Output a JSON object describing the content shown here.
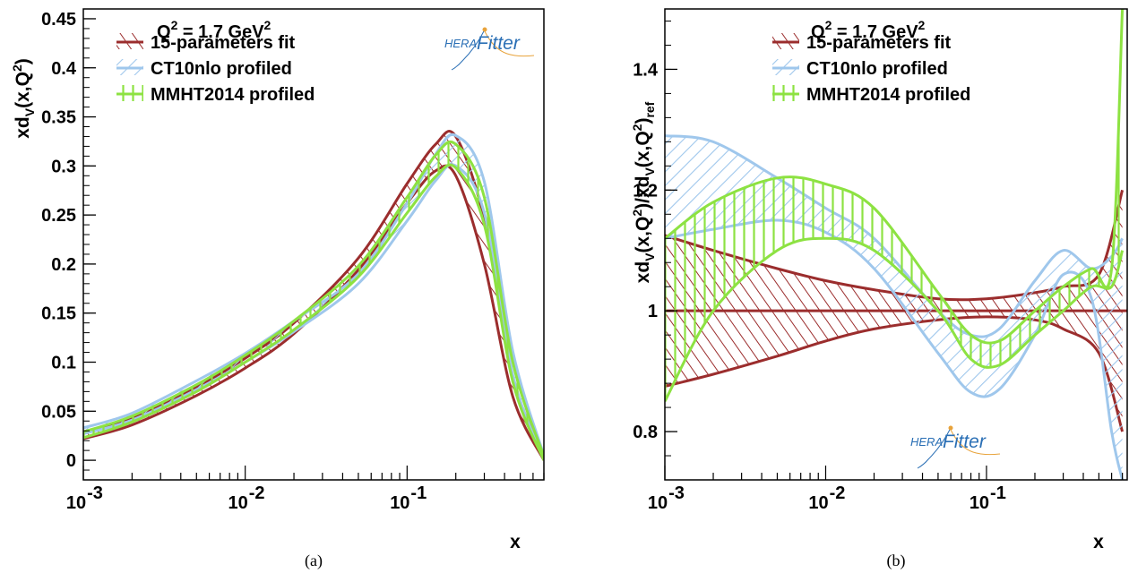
{
  "chart_data": [
    {
      "type": "line",
      "panel": "(a)",
      "annotation": "Q^2 = 1.7 GeV^2",
      "xlabel": "x",
      "ylabel": "xd_V(x,Q^2)",
      "xscale": "log",
      "xlim": [
        0.001,
        0.7
      ],
      "ylim": [
        -0.02,
        0.46
      ],
      "xticks": [
        {
          "value": 0.001,
          "label": "10",
          "exp": "-3"
        },
        {
          "value": 0.01,
          "label": "10",
          "exp": "-2"
        },
        {
          "value": 0.1,
          "label": "10",
          "exp": "-1"
        }
      ],
      "yticks": [
        {
          "value": 0,
          "label": "0"
        },
        {
          "value": 0.05,
          "label": "0.05"
        },
        {
          "value": 0.1,
          "label": "0.1"
        },
        {
          "value": 0.15,
          "label": "0.15"
        },
        {
          "value": 0.2,
          "label": "0.2"
        },
        {
          "value": 0.25,
          "label": "0.25"
        },
        {
          "value": 0.3,
          "label": "0.3"
        },
        {
          "value": 0.35,
          "label": "0.35"
        },
        {
          "value": 0.4,
          "label": "0.4"
        },
        {
          "value": 0.45,
          "label": "0.45"
        }
      ],
      "logo": {
        "a": "HERA",
        "b": "Fitter"
      },
      "series": [
        {
          "name": "15-parameters fit",
          "color": "#9b2d2d",
          "hatch": "diagonal",
          "x": [
            0.001,
            0.002,
            0.005,
            0.01,
            0.02,
            0.05,
            0.1,
            0.15,
            0.2,
            0.3,
            0.45,
            0.7
          ],
          "lower": [
            0.022,
            0.036,
            0.066,
            0.094,
            0.129,
            0.194,
            0.262,
            0.295,
            0.29,
            0.2,
            0.065,
            0.0
          ],
          "upper": [
            0.028,
            0.043,
            0.075,
            0.104,
            0.14,
            0.206,
            0.282,
            0.322,
            0.33,
            0.245,
            0.085,
            0.004
          ]
        },
        {
          "name": "CT10nlo profiled",
          "color": "#9fc7ec",
          "hatch": "backdiagonal",
          "x": [
            0.001,
            0.002,
            0.005,
            0.01,
            0.02,
            0.05,
            0.1,
            0.15,
            0.2,
            0.3,
            0.45,
            0.7
          ],
          "lower": [
            0.027,
            0.041,
            0.072,
            0.1,
            0.131,
            0.18,
            0.244,
            0.285,
            0.3,
            0.252,
            0.087,
            0.001
          ],
          "upper": [
            0.033,
            0.048,
            0.081,
            0.109,
            0.142,
            0.19,
            0.262,
            0.312,
            0.331,
            0.284,
            0.111,
            0.005
          ]
        },
        {
          "name": "MMHT2014 profiled",
          "color": "#8de242",
          "hatch": "vertical",
          "x": [
            0.001,
            0.002,
            0.005,
            0.01,
            0.02,
            0.05,
            0.1,
            0.15,
            0.2,
            0.3,
            0.45,
            0.7
          ],
          "lower": [
            0.023,
            0.039,
            0.07,
            0.1,
            0.133,
            0.187,
            0.252,
            0.289,
            0.298,
            0.24,
            0.08,
            0.0
          ],
          "upper": [
            0.029,
            0.045,
            0.077,
            0.107,
            0.142,
            0.198,
            0.268,
            0.311,
            0.322,
            0.268,
            0.1,
            0.004
          ]
        }
      ],
      "caption": "(a)"
    },
    {
      "type": "line",
      "panel": "(b)",
      "annotation": "Q^2 = 1.7 GeV^2",
      "xlabel": "x",
      "ylabel": "xd_V(x,Q^2)/xd_V(x,Q^2)_ref",
      "xscale": "log",
      "xlim": [
        0.001,
        0.75
      ],
      "ylim": [
        0.72,
        1.5
      ],
      "xticks": [
        {
          "value": 0.001,
          "label": "10",
          "exp": "-3"
        },
        {
          "value": 0.01,
          "label": "10",
          "exp": "-2"
        },
        {
          "value": 0.1,
          "label": "10",
          "exp": "-1"
        }
      ],
      "yticks": [
        {
          "value": 0.8,
          "label": "0.8"
        },
        {
          "value": 1.0,
          "label": "1"
        },
        {
          "value": 1.2,
          "label": "1.2"
        },
        {
          "value": 1.4,
          "label": "1.4"
        }
      ],
      "logo": {
        "a": "HERA",
        "b": "Fitter"
      },
      "series": [
        {
          "name": "15-parameters fit",
          "color": "#9b2d2d",
          "hatch": "diagonal",
          "x": [
            0.001,
            0.002,
            0.005,
            0.01,
            0.02,
            0.05,
            0.1,
            0.2,
            0.3,
            0.5,
            0.7
          ],
          "lower": [
            0.875,
            0.895,
            0.925,
            0.95,
            0.97,
            0.985,
            0.99,
            0.985,
            0.97,
            0.93,
            0.8
          ],
          "upper": [
            1.125,
            1.1,
            1.07,
            1.05,
            1.035,
            1.02,
            1.02,
            1.03,
            1.04,
            1.06,
            1.2
          ]
        },
        {
          "name": "CT10nlo profiled",
          "color": "#9fc7ec",
          "hatch": "backdiagonal",
          "x": [
            0.001,
            0.002,
            0.005,
            0.01,
            0.02,
            0.05,
            0.08,
            0.12,
            0.2,
            0.3,
            0.45,
            0.6,
            0.7
          ],
          "lower": [
            1.12,
            1.135,
            1.15,
            1.13,
            1.07,
            0.93,
            0.865,
            0.87,
            0.96,
            1.06,
            1.02,
            0.8,
            0.72
          ],
          "upper": [
            1.29,
            1.28,
            1.22,
            1.17,
            1.12,
            1.0,
            0.96,
            0.97,
            1.05,
            1.1,
            1.07,
            1.09,
            1.12
          ]
        },
        {
          "name": "MMHT2014 profiled",
          "color": "#8de242",
          "hatch": "vertical",
          "x": [
            0.001,
            0.002,
            0.005,
            0.01,
            0.02,
            0.05,
            0.08,
            0.12,
            0.2,
            0.3,
            0.45,
            0.6,
            0.7
          ],
          "lower": [
            0.85,
            1.0,
            1.1,
            1.12,
            1.1,
            1.0,
            0.92,
            0.91,
            0.96,
            1.0,
            1.04,
            1.04,
            1.1
          ],
          "upper": [
            1.12,
            1.18,
            1.22,
            1.21,
            1.17,
            1.03,
            0.96,
            0.95,
            1.0,
            1.04,
            1.07,
            1.07,
            1.5
          ]
        }
      ],
      "caption": "(b)"
    }
  ]
}
